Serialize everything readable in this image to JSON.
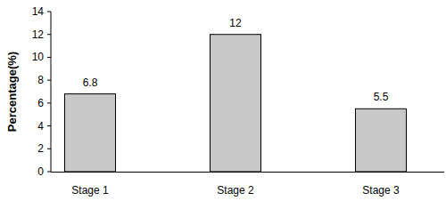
{
  "chart_data": {
    "type": "bar",
    "y_label": "Percentage(%)",
    "categories": [
      "Stage 1",
      "Stage 2",
      "Stage 3"
    ],
    "values": [
      6.8,
      12,
      5.5
    ],
    "color": "#c8c8c8",
    "ylim": [
      0,
      14
    ],
    "yticks": [
      0,
      2,
      4,
      6,
      8,
      10,
      12,
      14
    ],
    "grid": false,
    "data_labels": true
  }
}
